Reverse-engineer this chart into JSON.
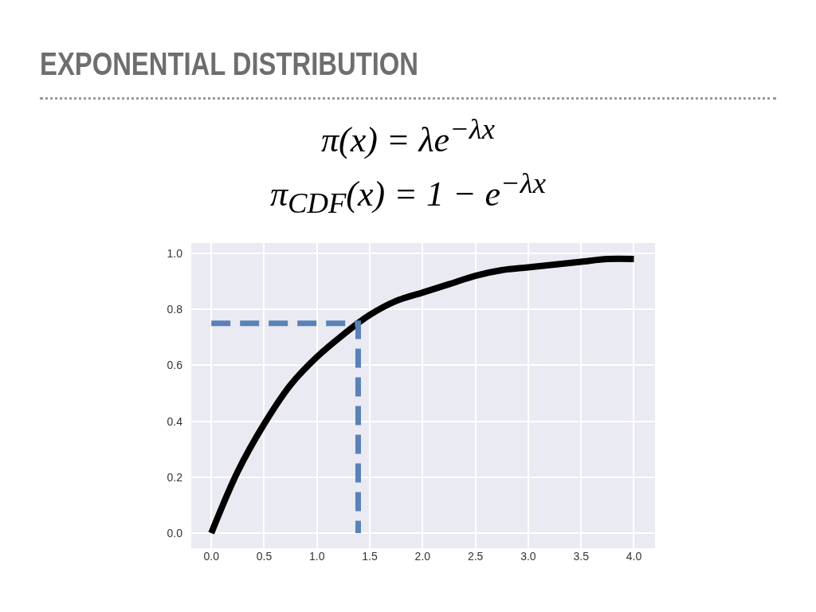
{
  "chart_data": {
    "type": "line",
    "title": "EXPONENTIAL DISTRIBUTION",
    "annotations": [
      "π(x) = λe$^{−λx}$",
      "π$_{CDF}$(x) = 1 − e$^{−λx}$"
    ],
    "xlim": [
      -0.19,
      4.2
    ],
    "xticks": [
      {
        "value": 0,
        "label": "0.0"
      },
      0.5,
      {
        "value": 1,
        "label": "1.0"
      },
      1.5,
      {
        "value": 2,
        "label": "2.0"
      },
      2.5,
      {
        "value": 3,
        "label": "3.0"
      },
      3.5,
      {
        "value": 4,
        "label": "4.0"
      }
    ],
    "ylim": [
      -0.054,
      1.037
    ],
    "yticks": [
      {
        "value": 0,
        "label": "0.0"
      },
      0.2,
      0.4,
      0.6,
      0.8,
      {
        "value": 1,
        "label": "1.0"
      }
    ],
    "grid": true,
    "marker": "none",
    "series": [
      {
        "color": "#000000",
        "line_style": "solid",
        "x": [
          0,
          0.25,
          0.5,
          0.75,
          1,
          1.25,
          1.5,
          1.75,
          2,
          2.25,
          2.5,
          2.75,
          3,
          3.25,
          3.5,
          3.75,
          4
        ],
        "values": [
          0,
          0.22,
          0.39,
          0.53,
          0.63,
          0.71,
          0.78,
          0.83,
          0.86,
          0.89,
          0.92,
          0.94,
          0.95,
          0.96,
          0.97,
          0.98,
          0.98
        ]
      },
      {
        "color": "#5a82b8",
        "line_style": "dashed",
        "x": [
          0,
          1.39,
          1.39
        ],
        "values": [
          0.75,
          0.75,
          0
        ]
      }
    ]
  }
}
